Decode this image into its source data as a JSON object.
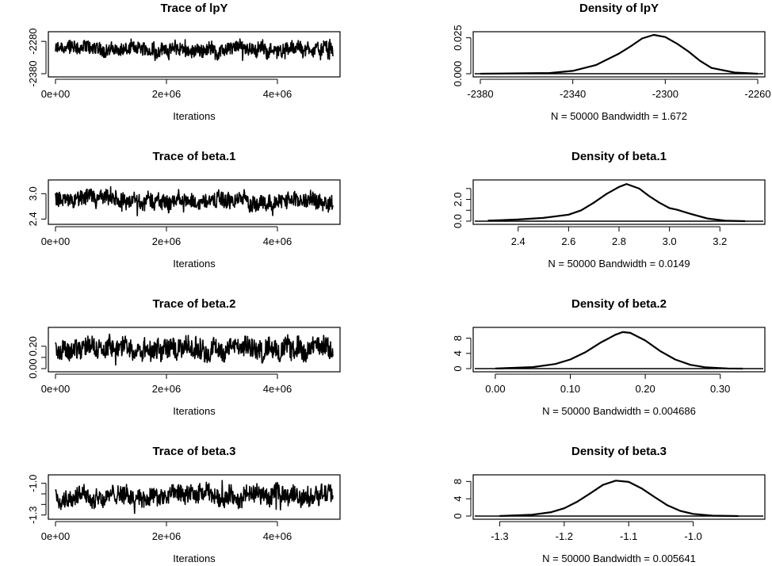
{
  "chart_data": [
    {
      "type": "line",
      "title": "Trace of lpY",
      "xlabel": "Iterations",
      "ylabel": "",
      "xlim": [
        0,
        5000000
      ],
      "ylim": [
        -2380,
        -2260
      ],
      "x_ticks": [
        0,
        2000000,
        4000000
      ],
      "x_tick_labels": [
        "0e+00",
        "2e+06",
        "4e+06"
      ],
      "y_ticks": [
        -2380,
        -2280
      ],
      "y_tick_labels": [
        "-2380",
        "-2280"
      ],
      "series": [
        {
          "mean": -2305,
          "band_low": -2325,
          "band_high": -2285,
          "min": -2340,
          "max": -2270
        }
      ]
    },
    {
      "type": "line",
      "title": "Density of lpY",
      "xlabel": "N = 50000   Bandwidth = 1.672",
      "ylabel": "",
      "xlim": [
        -2380,
        -2260
      ],
      "ylim": [
        0,
        0.027
      ],
      "x_ticks": [
        -2380,
        -2340,
        -2300,
        -2260
      ],
      "x_tick_labels": [
        "-2380",
        "-2340",
        "-2300",
        "-2260"
      ],
      "y_ticks": [
        0,
        0.025
      ],
      "y_tick_labels": [
        "0.000",
        "0.025"
      ],
      "series": [
        {
          "x": [
            -2380,
            -2350,
            -2340,
            -2330,
            -2320,
            -2315,
            -2310,
            -2305,
            -2300,
            -2295,
            -2290,
            -2285,
            -2280,
            -2270,
            -2260
          ],
          "y": [
            0,
            0.0005,
            0.002,
            0.006,
            0.014,
            0.019,
            0.0245,
            0.027,
            0.0255,
            0.021,
            0.0155,
            0.009,
            0.004,
            0.0008,
            0
          ]
        }
      ]
    },
    {
      "type": "line",
      "title": "Trace of beta.1",
      "xlabel": "Iterations",
      "ylabel": "",
      "xlim": [
        0,
        5000000
      ],
      "ylim": [
        2.35,
        3.25
      ],
      "x_ticks": [
        0,
        2000000,
        4000000
      ],
      "x_tick_labels": [
        "0e+00",
        "2e+06",
        "4e+06"
      ],
      "y_ticks": [
        2.4,
        3.0
      ],
      "y_tick_labels": [
        "2.4",
        "3.0"
      ],
      "series": [
        {
          "mean": 2.83,
          "band_low": 2.65,
          "band_high": 3.0,
          "min": 2.4,
          "max": 3.2
        }
      ]
    },
    {
      "type": "line",
      "title": "Density of beta.1",
      "xlabel": "N = 50000   Bandwidth = 0.0149",
      "ylabel": "",
      "xlim": [
        2.25,
        3.35
      ],
      "ylim": [
        0,
        3.5
      ],
      "x_ticks": [
        2.4,
        2.6,
        2.8,
        3.0,
        3.2
      ],
      "x_tick_labels": [
        "2.4",
        "2.6",
        "2.8",
        "3.0",
        "3.2"
      ],
      "y_ticks": [
        0,
        1,
        2,
        3
      ],
      "y_tick_labels": [
        "0.0",
        "",
        "2.0",
        ""
      ],
      "series": [
        {
          "x": [
            2.28,
            2.4,
            2.5,
            2.6,
            2.65,
            2.7,
            2.75,
            2.8,
            2.83,
            2.88,
            2.92,
            2.96,
            3.0,
            3.03,
            3.08,
            3.15,
            3.22,
            3.3
          ],
          "y": [
            0.05,
            0.15,
            0.3,
            0.6,
            1.0,
            1.7,
            2.5,
            3.15,
            3.42,
            3.0,
            2.3,
            1.7,
            1.2,
            1.05,
            0.7,
            0.25,
            0.05,
            0
          ]
        }
      ]
    },
    {
      "type": "line",
      "title": "Trace of beta.2",
      "xlabel": "Iterations",
      "ylabel": "",
      "xlim": [
        0,
        5000000
      ],
      "ylim": [
        0.0,
        0.34
      ],
      "x_ticks": [
        0,
        2000000,
        4000000
      ],
      "x_tick_labels": [
        "0e+00",
        "2e+06",
        "4e+06"
      ],
      "y_ticks": [
        0.0,
        0.1,
        0.2
      ],
      "y_tick_labels": [
        "0.00",
        "",
        "0.20"
      ],
      "series": [
        {
          "mean": 0.175,
          "band_low": 0.09,
          "band_high": 0.26,
          "min": 0.02,
          "max": 0.32
        }
      ]
    },
    {
      "type": "line",
      "title": "Density of beta.2",
      "xlabel": "N = 50000   Bandwidth = 0.004686",
      "ylabel": "",
      "xlim": [
        -0.02,
        0.35
      ],
      "ylim": [
        0,
        10
      ],
      "x_ticks": [
        0.0,
        0.1,
        0.2,
        0.3
      ],
      "x_tick_labels": [
        "0.00",
        "0.10",
        "0.20",
        "0.30"
      ],
      "y_ticks": [
        0,
        4,
        8
      ],
      "y_tick_labels": [
        "0",
        "4",
        "8"
      ],
      "series": [
        {
          "x": [
            0.0,
            0.05,
            0.08,
            0.1,
            0.12,
            0.14,
            0.16,
            0.17,
            0.18,
            0.2,
            0.22,
            0.24,
            0.26,
            0.28,
            0.31,
            0.33
          ],
          "y": [
            0.02,
            0.4,
            1.2,
            2.4,
            4.3,
            6.8,
            8.9,
            9.6,
            9.4,
            7.4,
            4.6,
            2.4,
            1.0,
            0.35,
            0.05,
            0
          ]
        }
      ]
    },
    {
      "type": "line",
      "title": "Trace of beta.3",
      "xlabel": "Iterations",
      "ylabel": "",
      "xlim": [
        0,
        5000000
      ],
      "ylim": [
        -1.31,
        -0.95
      ],
      "x_ticks": [
        0,
        2000000,
        4000000
      ],
      "x_tick_labels": [
        "0e+00",
        "2e+06",
        "4e+06"
      ],
      "y_ticks": [
        -1.3,
        -1.2,
        -1.1,
        -1.0
      ],
      "y_tick_labels": [
        "-1.3",
        "",
        "",
        "-1.0"
      ],
      "series": [
        {
          "mean": -1.12,
          "band_low": -1.2,
          "band_high": -1.04,
          "min": -1.29,
          "max": -0.97
        }
      ]
    },
    {
      "type": "line",
      "title": "Density of beta.3",
      "xlabel": "N = 50000   Bandwidth = 0.005641",
      "ylabel": "",
      "xlim": [
        -1.33,
        -0.9
      ],
      "ylim": [
        0,
        8.8
      ],
      "x_ticks": [
        -1.3,
        -1.2,
        -1.1,
        -1.0
      ],
      "x_tick_labels": [
        "-1.3",
        "-1.2",
        "-1.1",
        "-1.0"
      ],
      "y_ticks": [
        0,
        4,
        8
      ],
      "y_tick_labels": [
        "0",
        "4",
        "8"
      ],
      "series": [
        {
          "x": [
            -1.3,
            -1.25,
            -1.22,
            -1.2,
            -1.18,
            -1.16,
            -1.14,
            -1.12,
            -1.1,
            -1.08,
            -1.06,
            -1.04,
            -1.02,
            -1.0,
            -0.97,
            -0.93
          ],
          "y": [
            0.02,
            0.3,
            0.9,
            1.8,
            3.3,
            5.2,
            7.2,
            8.2,
            7.9,
            6.4,
            4.4,
            2.5,
            1.2,
            0.5,
            0.1,
            0
          ]
        }
      ]
    }
  ]
}
